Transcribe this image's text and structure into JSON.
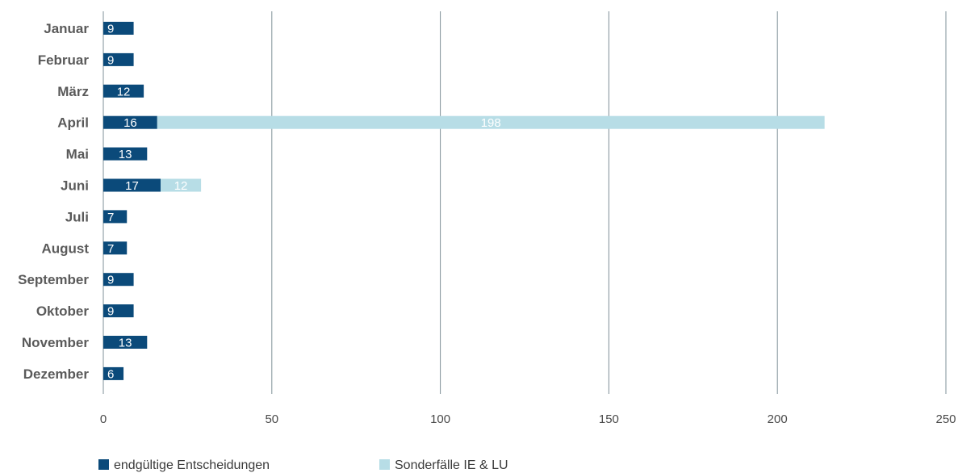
{
  "chart_data": {
    "type": "bar",
    "orientation": "horizontal",
    "stacked": true,
    "categories": [
      "Januar",
      "Februar",
      "März",
      "April",
      "Mai",
      "Juni",
      "Juli",
      "August",
      "September",
      "Oktober",
      "November",
      "Dezember"
    ],
    "series": [
      {
        "name": "endgültige Entscheidungen",
        "color": "#0b4a7a",
        "values": [
          9,
          9,
          12,
          16,
          13,
          17,
          7,
          7,
          9,
          9,
          13,
          6
        ]
      },
      {
        "name": "Sonderfälle IE & LU",
        "color": "#b7dde6",
        "values": [
          0,
          0,
          0,
          198,
          0,
          12,
          0,
          0,
          0,
          0,
          0,
          0
        ]
      }
    ],
    "xlim": [
      0,
      250
    ],
    "xticks": [
      0,
      50,
      100,
      150,
      200,
      250
    ],
    "grid": "vertical",
    "legend": "bottom-left"
  }
}
